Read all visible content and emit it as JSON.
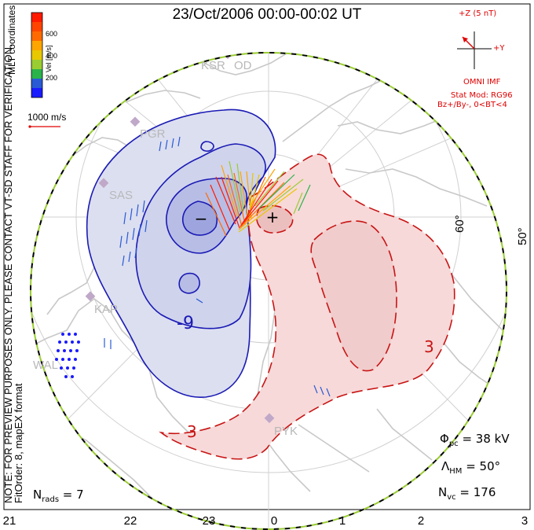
{
  "title": "23/Oct/2006 00:00-00:02 UT",
  "mlt_ticks": [
    "21",
    "22",
    "23",
    "0",
    "1",
    "2",
    "3"
  ],
  "latitude_labels": [
    "60°",
    "50°"
  ],
  "side_note": [
    "NOTE: FOR PREVIEW PURPOSES ONLY. PLEASE CONTACT VT-SD STAFF FOR VERIFICATION.",
    "FitOrder: 8, mapEX format"
  ],
  "mlt_coordinates_label": "MLT coordinates",
  "velocity_colorbar": {
    "label": "Vel [m/s]",
    "ticks": [
      "600",
      "400",
      "200"
    ],
    "colors": [
      "#ff1a00",
      "#ff6a00",
      "#ffa500",
      "#e8c800",
      "#9acd32",
      "#2ab34a",
      "#2a8a8a",
      "#2a5ad4",
      "#1a1aff"
    ]
  },
  "vector_scale_label": "1000 m/s",
  "stations": [
    "KSR",
    "OD",
    "PGR",
    "SAS",
    "KAP",
    "WAL",
    "PYK"
  ],
  "imf": {
    "z_label": "+Z (5 nT)",
    "y_label": "+Y",
    "source": "OMNI IMF",
    "stat_mod": "Stat Mod: RG96",
    "condition": "Bz+/By-, 0<BT<4"
  },
  "stats": {
    "phi_pc": "38 kV",
    "lambda_hm": "50°",
    "n_vc": "176",
    "n_rads": "7"
  },
  "contour_labels": [
    "-9",
    "3",
    "3"
  ],
  "potential_markers": [
    "−",
    "+"
  ],
  "colors": {
    "negative_cell_fill": "#dcdff0",
    "negative_cell_line": "#1a1ab4",
    "positive_cell_fill": "#f7d9d9",
    "positive_cell_line": "#c81414",
    "coastline": "#c8c8c8",
    "boundary_green": "#9acd32"
  }
}
